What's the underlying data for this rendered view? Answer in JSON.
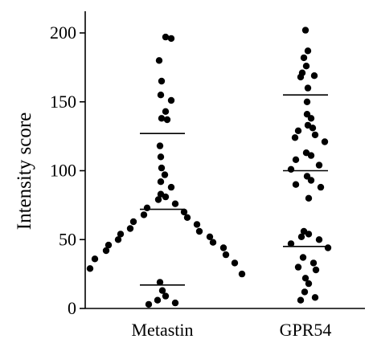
{
  "chart_data": {
    "type": "scatter",
    "subtype": "dot-plot",
    "title": "",
    "xlabel": "",
    "ylabel": "Intensity score",
    "ylim": [
      0,
      210
    ],
    "yticks": [
      0,
      50,
      100,
      150,
      200
    ],
    "grid": false,
    "legend": "none",
    "categories": [
      "Metastin",
      "GPR54"
    ],
    "colors": {
      "points": "#000000",
      "axes": "#000000",
      "lines": "#000000"
    },
    "series": [
      {
        "category": "Metastin",
        "mean": 72,
        "upper_sd": 127,
        "lower_sd": 17,
        "values": [
          197,
          196,
          180,
          165,
          155,
          151,
          143,
          138,
          137,
          118,
          110,
          102,
          97,
          92,
          88,
          83,
          81,
          79,
          76,
          73,
          70,
          68,
          66,
          63,
          61,
          58,
          56,
          54,
          52,
          50,
          48,
          46,
          44,
          42,
          39,
          36,
          33,
          29,
          25,
          19,
          13,
          9,
          6,
          4,
          3
        ]
      },
      {
        "category": "GPR54",
        "mean": 100,
        "upper_sd": 155,
        "lower_sd": 45,
        "values": [
          202,
          187,
          182,
          176,
          171,
          169,
          168,
          160,
          150,
          141,
          138,
          133,
          131,
          129,
          126,
          124,
          121,
          113,
          111,
          108,
          104,
          101,
          96,
          93,
          90,
          88,
          80,
          56,
          54,
          52,
          50,
          47,
          44,
          37,
          33,
          30,
          28,
          22,
          18,
          12,
          8,
          6
        ]
      }
    ]
  }
}
